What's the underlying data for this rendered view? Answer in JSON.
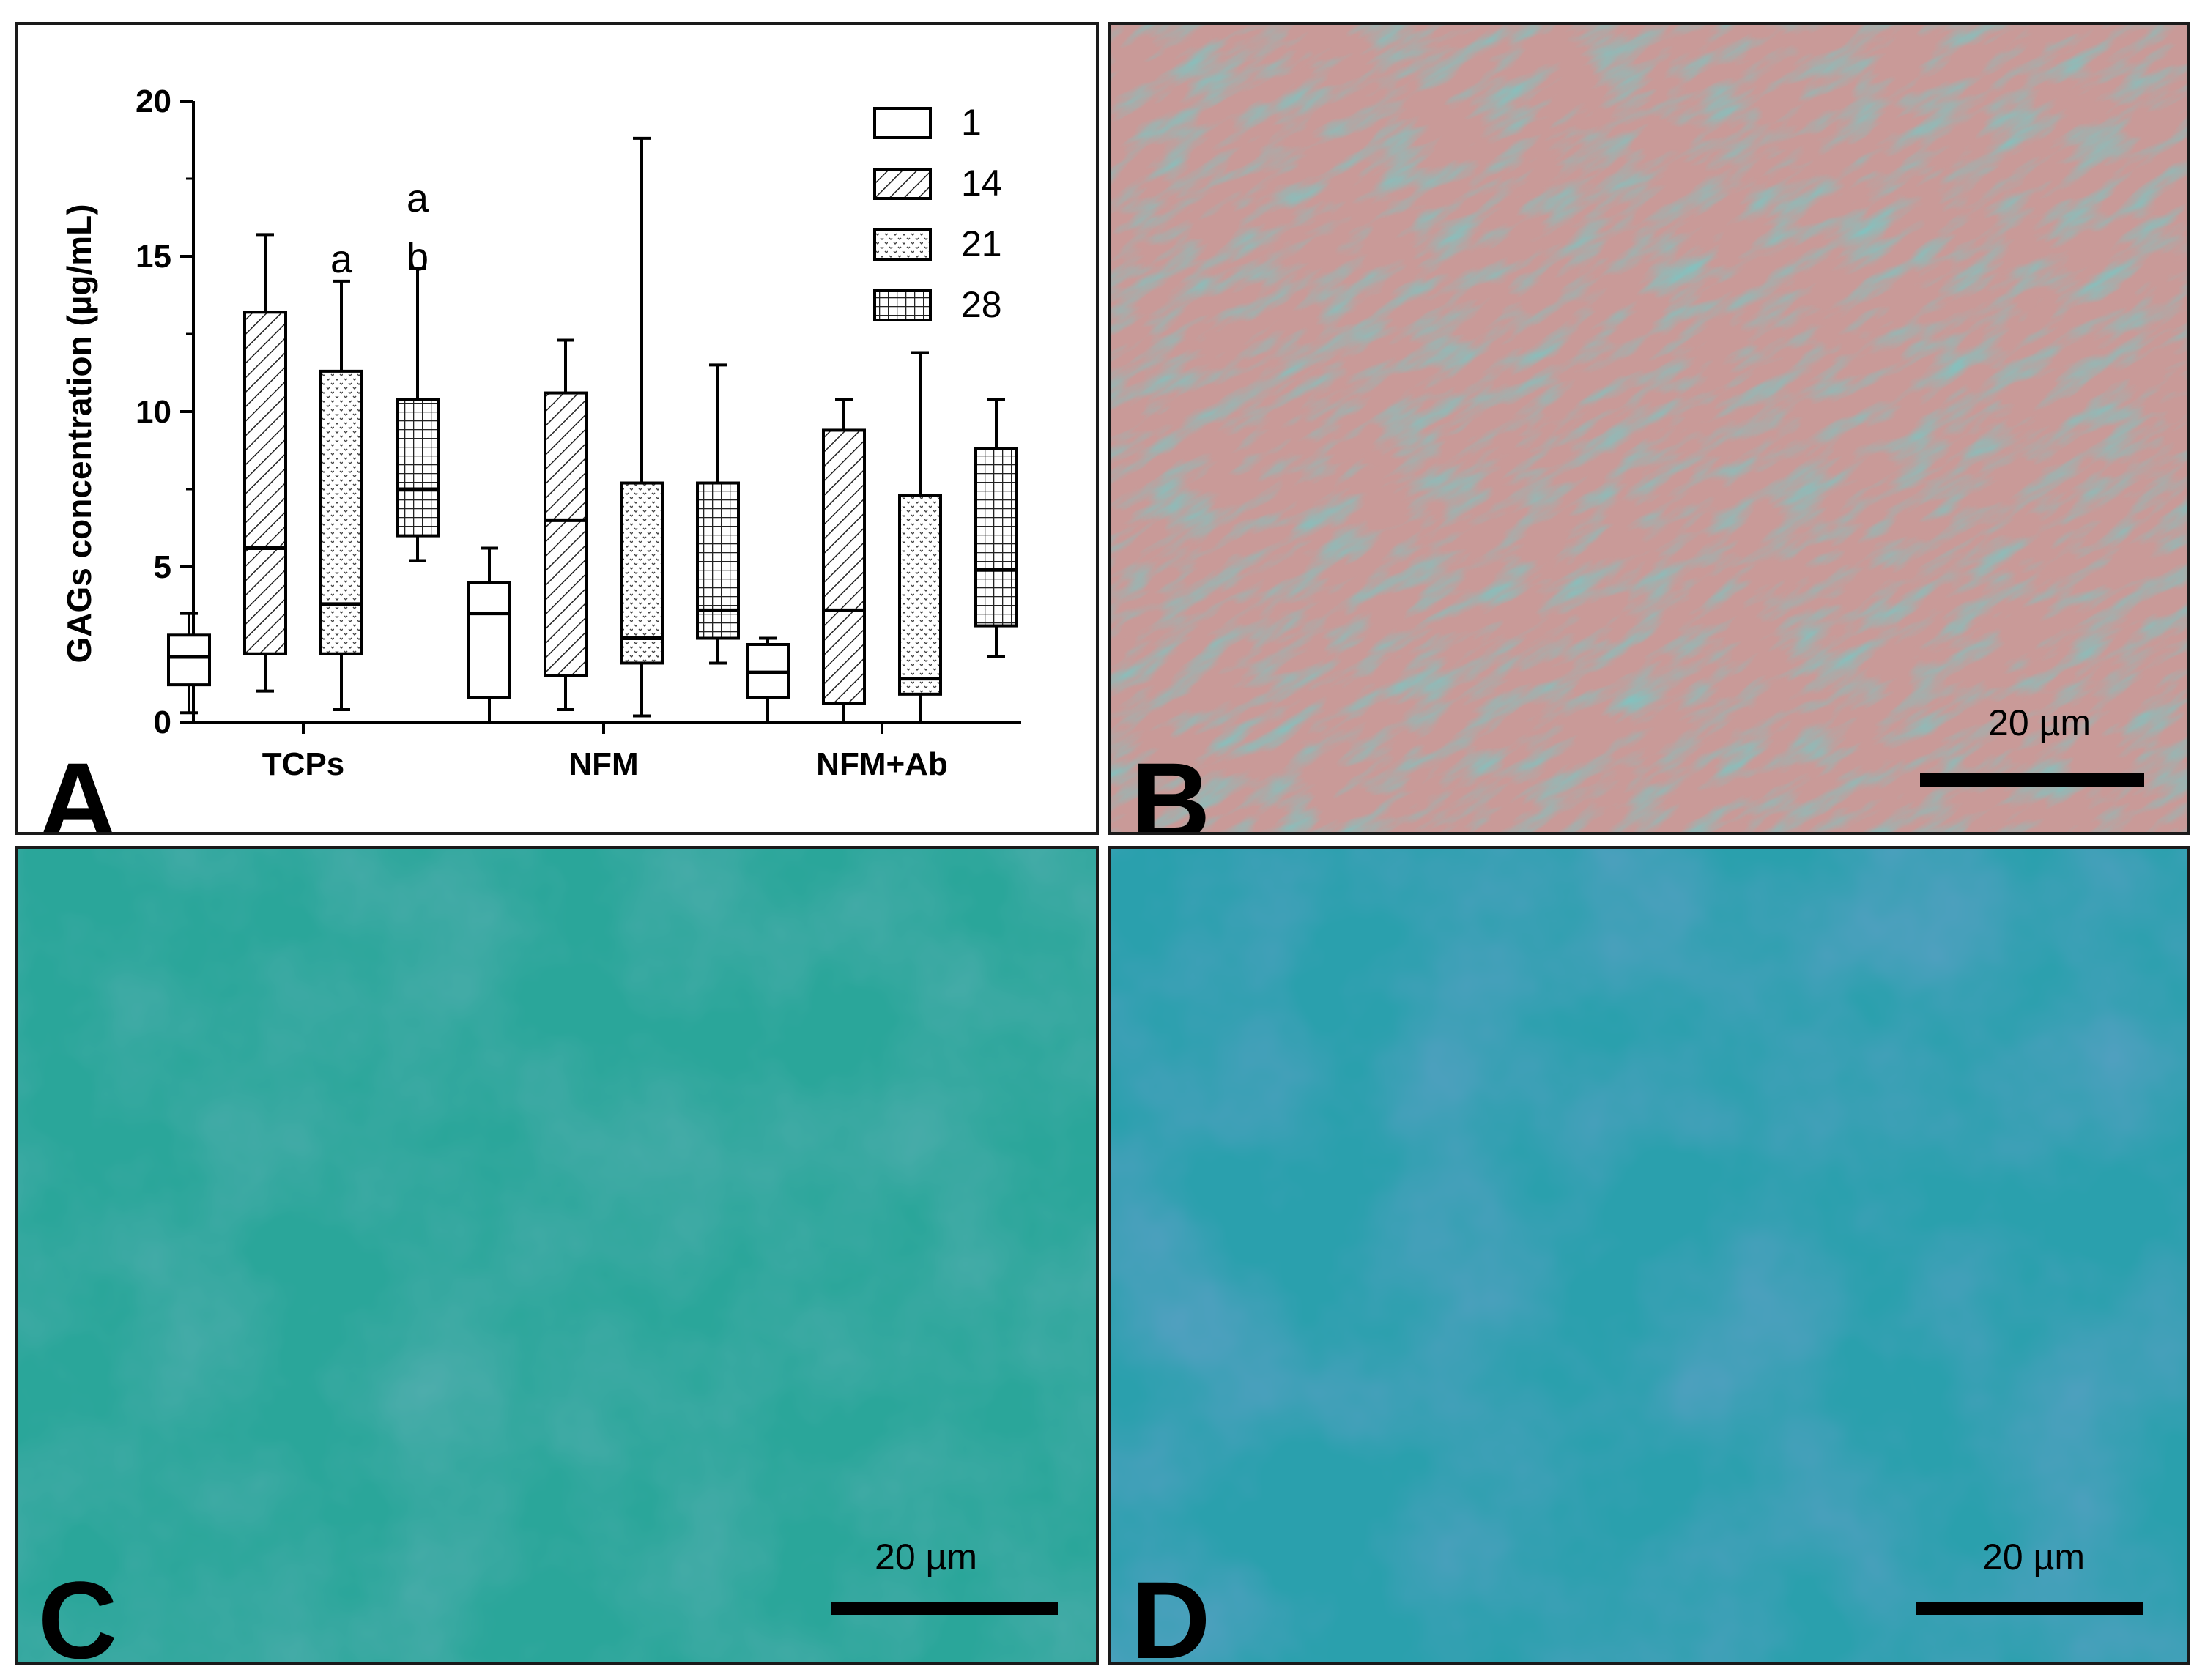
{
  "chart_data": {
    "type": "box",
    "ylabel": "GAGs concentration (µg/mL)",
    "ylim": [
      0,
      20
    ],
    "yticks": [
      0,
      5,
      10,
      15,
      20
    ],
    "ytick_labels": [
      "0",
      "5",
      "10",
      "15",
      "20"
    ],
    "categories": [
      "TCPs",
      "NFM",
      "NFM+Ab"
    ],
    "legend": {
      "placement": "top-right",
      "entries": [
        {
          "label": "1",
          "pattern": "open"
        },
        {
          "label": "14",
          "pattern": "hatch"
        },
        {
          "label": "21",
          "pattern": "dots"
        },
        {
          "label": "28",
          "pattern": "grid"
        }
      ]
    },
    "series": [
      {
        "name": "1",
        "pattern": "open",
        "boxes": [
          {
            "min": 0.3,
            "q1": 1.2,
            "median": 2.1,
            "q3": 2.8,
            "max": 3.5
          },
          {
            "min": 0.0,
            "q1": 0.8,
            "median": 3.5,
            "q3": 4.5,
            "max": 5.6
          },
          {
            "min": 0.0,
            "q1": 0.8,
            "median": 1.6,
            "q3": 2.5,
            "max": 2.7
          }
        ]
      },
      {
        "name": "14",
        "pattern": "hatch",
        "boxes": [
          {
            "min": 1.0,
            "q1": 2.2,
            "median": 5.6,
            "q3": 13.2,
            "max": 15.7
          },
          {
            "min": 0.4,
            "q1": 1.5,
            "median": 6.5,
            "q3": 10.6,
            "max": 12.3
          },
          {
            "min": 0.0,
            "q1": 0.6,
            "median": 3.6,
            "q3": 9.4,
            "max": 10.4
          }
        ]
      },
      {
        "name": "21",
        "pattern": "dots",
        "boxes": [
          {
            "min": 0.4,
            "q1": 2.2,
            "median": 3.8,
            "q3": 11.3,
            "max": 14.2
          },
          {
            "min": 0.2,
            "q1": 1.9,
            "median": 2.7,
            "q3": 7.7,
            "max": 18.8
          },
          {
            "min": 0.0,
            "q1": 0.9,
            "median": 1.4,
            "q3": 7.3,
            "max": 11.9
          }
        ]
      },
      {
        "name": "28",
        "pattern": "grid",
        "boxes": [
          {
            "min": 5.2,
            "q1": 6.0,
            "median": 7.5,
            "q3": 10.4,
            "max": 14.6
          },
          {
            "min": 1.9,
            "q1": 2.7,
            "median": 3.6,
            "q3": 7.7,
            "max": 11.5
          },
          {
            "min": 2.1,
            "q1": 3.1,
            "median": 4.9,
            "q3": 8.8,
            "max": 10.4
          }
        ]
      }
    ],
    "annotations": [
      {
        "text": "a",
        "category": "TCPs",
        "series": "21"
      },
      {
        "text": "a",
        "category": "TCPs",
        "series": "28"
      },
      {
        "text": "b",
        "category": "TCPs",
        "series": "28"
      }
    ]
  },
  "panels": {
    "a": {
      "letter": "A"
    },
    "b": {
      "letter": "B",
      "scale_label": "20 µm",
      "color": "#c99a98"
    },
    "c": {
      "letter": "C",
      "scale_label": "20 µm",
      "color": "#2aa69a"
    },
    "d": {
      "letter": "D",
      "scale_label": "20 µm",
      "color": "#2aa0ad"
    }
  }
}
